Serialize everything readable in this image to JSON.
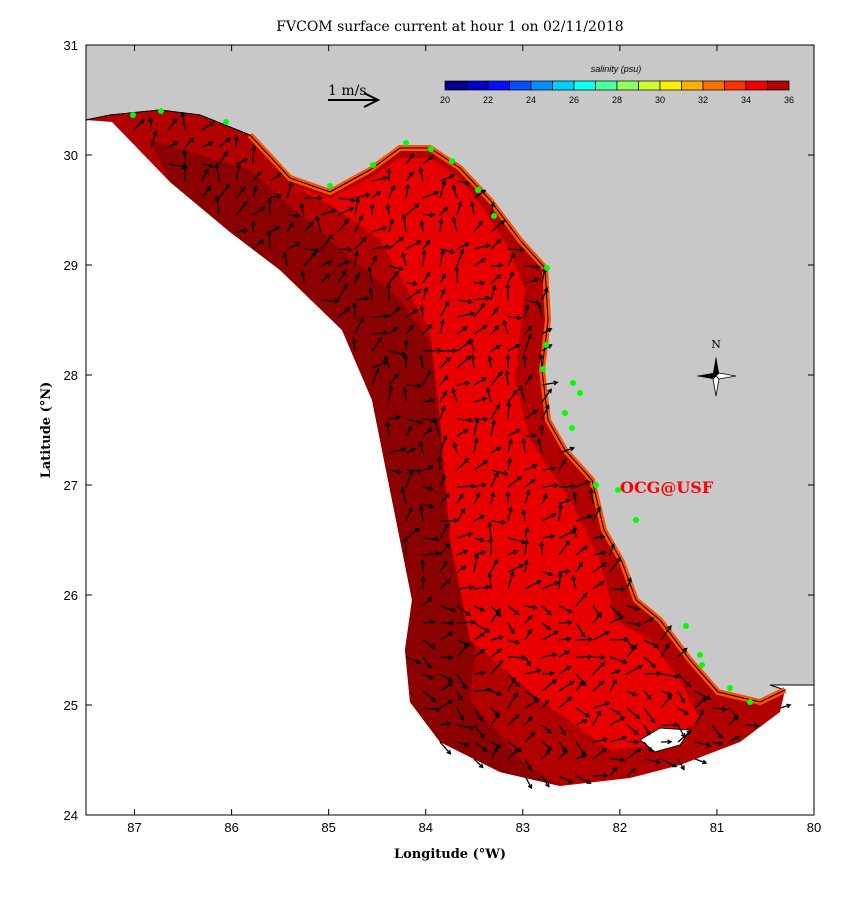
{
  "chart_data": {
    "type": "map",
    "title": "FVCOM surface current at hour 1 on 02/11/2018",
    "xlabel": "Longitude (°W)",
    "ylabel": "Latitude (°N)",
    "xlim": [
      -87.5,
      -80
    ],
    "ylim": [
      24,
      31
    ],
    "x_ticks": [
      "87",
      "86",
      "85",
      "84",
      "83",
      "82",
      "81",
      "80"
    ],
    "y_ticks": [
      "24",
      "25",
      "26",
      "27",
      "28",
      "29",
      "30",
      "31"
    ],
    "colorbar": {
      "label": "salinity (psu)",
      "range": [
        20,
        36
      ],
      "tick_labels": [
        "20",
        "22",
        "24",
        "26",
        "28",
        "30",
        "32",
        "34",
        "36"
      ],
      "colors": [
        "#00008c",
        "#0000c8",
        "#0010ff",
        "#0050ff",
        "#0090ff",
        "#00d0ff",
        "#10fff0",
        "#50ffa0",
        "#90ff60",
        "#d0ff30",
        "#fff000",
        "#ffb000",
        "#ff7000",
        "#ff3000",
        "#f00000",
        "#b00000"
      ]
    },
    "scale_arrow_label": "1 m/s",
    "compass_label": "N",
    "watermark": "OCG@USF",
    "colors": {
      "land": "#c8c8c8",
      "offshore": "#8b0000",
      "shelf": "#b00000",
      "nearshore": "#e80000",
      "coastal": "#ff5000",
      "station": "#00ff00",
      "watermark": "#ff0000"
    }
  }
}
